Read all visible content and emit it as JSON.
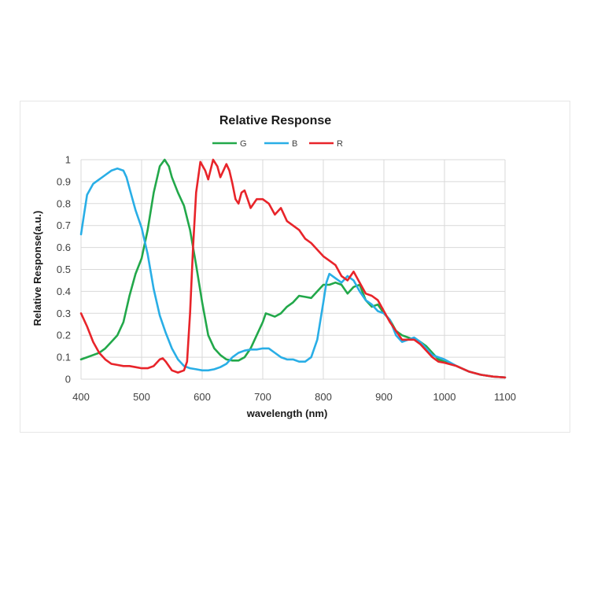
{
  "chart_data": {
    "type": "line",
    "title": "Relative Response",
    "xlabel": "wavelength (nm)",
    "ylabel": "Relative Response(a.u.)",
    "xlim": [
      400,
      1100
    ],
    "ylim": [
      0,
      1
    ],
    "x_ticks": [
      "400",
      "500",
      "600",
      "700",
      "800",
      "900",
      "1000",
      "1100"
    ],
    "y_ticks": [
      "0",
      "0.1",
      "0.2",
      "0.3",
      "0.4",
      "0.5",
      "0.6",
      "0.7",
      "0.8",
      "0.9",
      "1"
    ],
    "grid": true,
    "legend_position": "top",
    "series": [
      {
        "name": "G",
        "color": "#22a84a",
        "points": [
          [
            400,
            0.09
          ],
          [
            410,
            0.1
          ],
          [
            420,
            0.11
          ],
          [
            430,
            0.12
          ],
          [
            440,
            0.14
          ],
          [
            450,
            0.17
          ],
          [
            460,
            0.2
          ],
          [
            470,
            0.26
          ],
          [
            480,
            0.38
          ],
          [
            490,
            0.48
          ],
          [
            500,
            0.55
          ],
          [
            510,
            0.68
          ],
          [
            520,
            0.85
          ],
          [
            530,
            0.97
          ],
          [
            538,
            1.0
          ],
          [
            545,
            0.97
          ],
          [
            550,
            0.92
          ],
          [
            560,
            0.85
          ],
          [
            570,
            0.79
          ],
          [
            580,
            0.68
          ],
          [
            590,
            0.52
          ],
          [
            600,
            0.35
          ],
          [
            610,
            0.2
          ],
          [
            620,
            0.14
          ],
          [
            630,
            0.11
          ],
          [
            640,
            0.09
          ],
          [
            650,
            0.085
          ],
          [
            660,
            0.085
          ],
          [
            670,
            0.1
          ],
          [
            680,
            0.14
          ],
          [
            690,
            0.2
          ],
          [
            700,
            0.26
          ],
          [
            705,
            0.3
          ],
          [
            710,
            0.295
          ],
          [
            720,
            0.285
          ],
          [
            730,
            0.3
          ],
          [
            740,
            0.33
          ],
          [
            750,
            0.35
          ],
          [
            760,
            0.38
          ],
          [
            770,
            0.375
          ],
          [
            780,
            0.37
          ],
          [
            790,
            0.4
          ],
          [
            800,
            0.43
          ],
          [
            810,
            0.43
          ],
          [
            820,
            0.44
          ],
          [
            830,
            0.43
          ],
          [
            840,
            0.39
          ],
          [
            850,
            0.42
          ],
          [
            860,
            0.43
          ],
          [
            870,
            0.36
          ],
          [
            880,
            0.33
          ],
          [
            890,
            0.34
          ],
          [
            900,
            0.3
          ],
          [
            910,
            0.27
          ],
          [
            920,
            0.22
          ],
          [
            930,
            0.2
          ],
          [
            940,
            0.19
          ],
          [
            950,
            0.18
          ],
          [
            960,
            0.17
          ],
          [
            970,
            0.15
          ],
          [
            980,
            0.12
          ],
          [
            990,
            0.09
          ],
          [
            1000,
            0.08
          ],
          [
            1020,
            0.06
          ],
          [
            1040,
            0.035
          ],
          [
            1060,
            0.02
          ],
          [
            1080,
            0.012
          ],
          [
            1100,
            0.008
          ]
        ]
      },
      {
        "name": "B",
        "color": "#29aee6",
        "points": [
          [
            400,
            0.66
          ],
          [
            405,
            0.75
          ],
          [
            410,
            0.84
          ],
          [
            420,
            0.89
          ],
          [
            430,
            0.91
          ],
          [
            440,
            0.93
          ],
          [
            450,
            0.95
          ],
          [
            460,
            0.96
          ],
          [
            470,
            0.95
          ],
          [
            475,
            0.92
          ],
          [
            480,
            0.87
          ],
          [
            490,
            0.77
          ],
          [
            500,
            0.69
          ],
          [
            510,
            0.57
          ],
          [
            520,
            0.41
          ],
          [
            530,
            0.29
          ],
          [
            540,
            0.21
          ],
          [
            550,
            0.14
          ],
          [
            560,
            0.09
          ],
          [
            570,
            0.06
          ],
          [
            580,
            0.05
          ],
          [
            590,
            0.045
          ],
          [
            600,
            0.04
          ],
          [
            610,
            0.04
          ],
          [
            620,
            0.045
          ],
          [
            630,
            0.055
          ],
          [
            640,
            0.07
          ],
          [
            650,
            0.1
          ],
          [
            660,
            0.12
          ],
          [
            670,
            0.13
          ],
          [
            680,
            0.135
          ],
          [
            690,
            0.135
          ],
          [
            700,
            0.14
          ],
          [
            710,
            0.14
          ],
          [
            720,
            0.12
          ],
          [
            730,
            0.1
          ],
          [
            740,
            0.09
          ],
          [
            750,
            0.09
          ],
          [
            760,
            0.08
          ],
          [
            770,
            0.08
          ],
          [
            780,
            0.1
          ],
          [
            790,
            0.18
          ],
          [
            800,
            0.35
          ],
          [
            805,
            0.44
          ],
          [
            810,
            0.48
          ],
          [
            820,
            0.46
          ],
          [
            830,
            0.44
          ],
          [
            840,
            0.47
          ],
          [
            850,
            0.45
          ],
          [
            860,
            0.4
          ],
          [
            870,
            0.36
          ],
          [
            880,
            0.34
          ],
          [
            890,
            0.31
          ],
          [
            900,
            0.3
          ],
          [
            910,
            0.27
          ],
          [
            920,
            0.2
          ],
          [
            930,
            0.17
          ],
          [
            940,
            0.18
          ],
          [
            950,
            0.19
          ],
          [
            960,
            0.17
          ],
          [
            970,
            0.14
          ],
          [
            980,
            0.11
          ],
          [
            990,
            0.1
          ],
          [
            1000,
            0.09
          ],
          [
            1020,
            0.06
          ],
          [
            1040,
            0.035
          ],
          [
            1060,
            0.02
          ],
          [
            1080,
            0.012
          ],
          [
            1100,
            0.008
          ]
        ]
      },
      {
        "name": "R",
        "color": "#e8242a",
        "points": [
          [
            400,
            0.3
          ],
          [
            410,
            0.24
          ],
          [
            420,
            0.17
          ],
          [
            430,
            0.12
          ],
          [
            440,
            0.09
          ],
          [
            450,
            0.07
          ],
          [
            460,
            0.065
          ],
          [
            470,
            0.06
          ],
          [
            480,
            0.06
          ],
          [
            490,
            0.055
          ],
          [
            500,
            0.05
          ],
          [
            510,
            0.05
          ],
          [
            520,
            0.06
          ],
          [
            530,
            0.09
          ],
          [
            535,
            0.095
          ],
          [
            540,
            0.08
          ],
          [
            550,
            0.04
          ],
          [
            560,
            0.03
          ],
          [
            570,
            0.04
          ],
          [
            575,
            0.08
          ],
          [
            580,
            0.3
          ],
          [
            585,
            0.6
          ],
          [
            590,
            0.85
          ],
          [
            597,
            0.99
          ],
          [
            605,
            0.95
          ],
          [
            610,
            0.91
          ],
          [
            618,
            1.0
          ],
          [
            625,
            0.97
          ],
          [
            630,
            0.92
          ],
          [
            640,
            0.98
          ],
          [
            645,
            0.95
          ],
          [
            650,
            0.89
          ],
          [
            655,
            0.82
          ],
          [
            660,
            0.8
          ],
          [
            665,
            0.85
          ],
          [
            670,
            0.86
          ],
          [
            675,
            0.82
          ],
          [
            680,
            0.78
          ],
          [
            690,
            0.82
          ],
          [
            700,
            0.82
          ],
          [
            710,
            0.8
          ],
          [
            720,
            0.75
          ],
          [
            730,
            0.78
          ],
          [
            740,
            0.72
          ],
          [
            750,
            0.7
          ],
          [
            760,
            0.68
          ],
          [
            770,
            0.64
          ],
          [
            780,
            0.62
          ],
          [
            790,
            0.59
          ],
          [
            800,
            0.56
          ],
          [
            810,
            0.54
          ],
          [
            820,
            0.52
          ],
          [
            830,
            0.47
          ],
          [
            840,
            0.45
          ],
          [
            850,
            0.49
          ],
          [
            860,
            0.44
          ],
          [
            870,
            0.39
          ],
          [
            880,
            0.38
          ],
          [
            890,
            0.36
          ],
          [
            900,
            0.31
          ],
          [
            910,
            0.26
          ],
          [
            920,
            0.22
          ],
          [
            930,
            0.18
          ],
          [
            940,
            0.18
          ],
          [
            950,
            0.18
          ],
          [
            960,
            0.16
          ],
          [
            970,
            0.13
          ],
          [
            980,
            0.1
          ],
          [
            990,
            0.08
          ],
          [
            1000,
            0.075
          ],
          [
            1020,
            0.06
          ],
          [
            1040,
            0.035
          ],
          [
            1060,
            0.02
          ],
          [
            1080,
            0.012
          ],
          [
            1100,
            0.008
          ]
        ]
      }
    ]
  }
}
